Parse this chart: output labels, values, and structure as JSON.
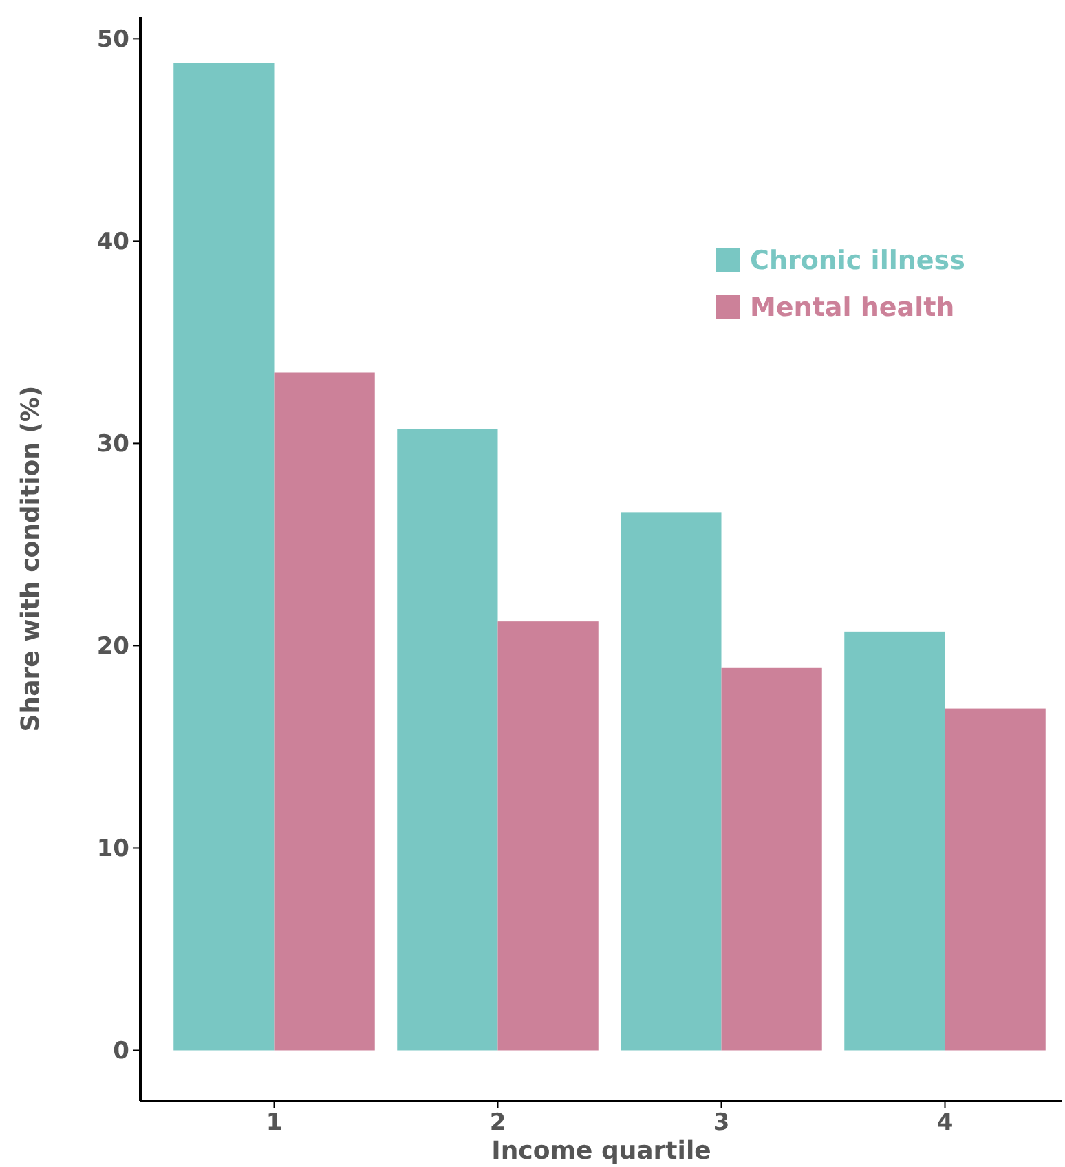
{
  "chart_data": {
    "type": "bar",
    "xlabel": "Income quartile",
    "ylabel": "Share with condition (%)",
    "categories": [
      "1",
      "2",
      "3",
      "4"
    ],
    "series": [
      {
        "name": "Chronic illness",
        "color": "#79c7c3",
        "values": [
          48.8,
          30.7,
          26.6,
          20.7
        ]
      },
      {
        "name": "Mental health",
        "color": "#cc8199",
        "values": [
          33.5,
          21.2,
          18.9,
          16.9
        ]
      }
    ],
    "ylim": [
      -2.5,
      51.1
    ],
    "yticks": [
      0,
      10,
      20,
      30,
      40,
      50
    ],
    "grid": false,
    "legend": "top right"
  }
}
